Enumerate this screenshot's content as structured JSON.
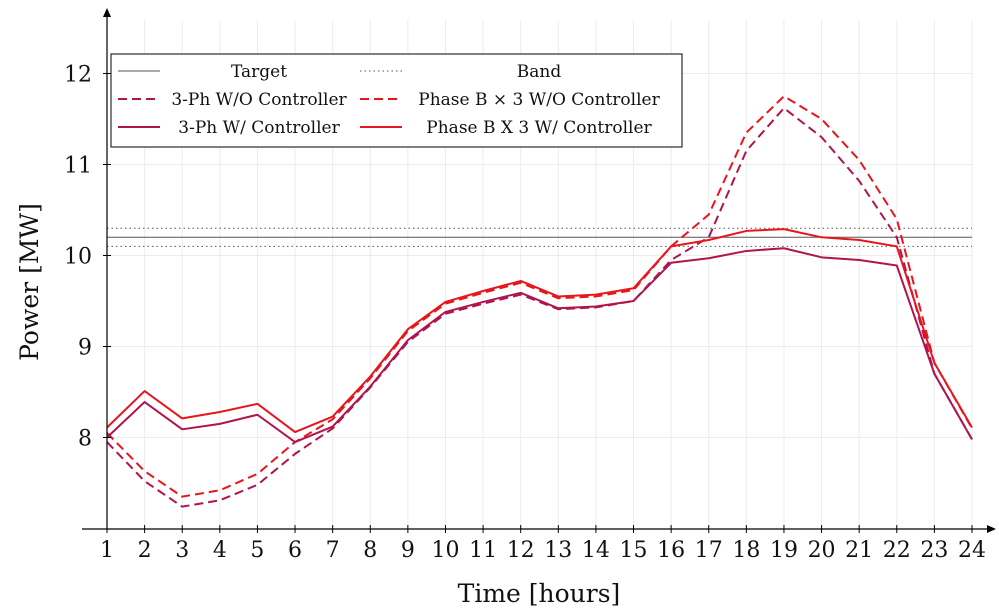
{
  "chart_data": {
    "type": "line",
    "title": "",
    "xlabel": "Time [hours]",
    "ylabel": "Power [MW]",
    "xlim": [
      1,
      24
    ],
    "ylim": [
      7.1,
      12.4
    ],
    "grid": true,
    "legend_position": "top-left",
    "x": [
      1,
      2,
      3,
      4,
      5,
      6,
      7,
      8,
      9,
      10,
      11,
      12,
      13,
      14,
      15,
      16,
      17,
      18,
      19,
      20,
      21,
      22,
      23,
      24
    ],
    "x_ticks": [
      "1",
      "2",
      "3",
      "4",
      "5",
      "6",
      "7",
      "8",
      "9",
      "10",
      "11",
      "12",
      "13",
      "14",
      "15",
      "16",
      "17",
      "18",
      "19",
      "20",
      "21",
      "22",
      "23",
      "24"
    ],
    "y_ticks": [
      8,
      9,
      10,
      11,
      12
    ],
    "series": [
      {
        "name": "Target",
        "style": "solid-thin",
        "color": "#555555",
        "values": [
          10.2,
          10.2,
          10.2,
          10.2,
          10.2,
          10.2,
          10.2,
          10.2,
          10.2,
          10.2,
          10.2,
          10.2,
          10.2,
          10.2,
          10.2,
          10.2,
          10.2,
          10.2,
          10.2,
          10.2,
          10.2,
          10.2,
          10.2,
          10.2
        ]
      },
      {
        "name": "Band",
        "style": "dotted",
        "color": "#555555",
        "values_upper": [
          10.3,
          10.3,
          10.3,
          10.3,
          10.3,
          10.3,
          10.3,
          10.3,
          10.3,
          10.3,
          10.3,
          10.3,
          10.3,
          10.3,
          10.3,
          10.3,
          10.3,
          10.3,
          10.3,
          10.3,
          10.3,
          10.3,
          10.3,
          10.3
        ],
        "values_lower": [
          10.1,
          10.1,
          10.1,
          10.1,
          10.1,
          10.1,
          10.1,
          10.1,
          10.1,
          10.1,
          10.1,
          10.1,
          10.1,
          10.1,
          10.1,
          10.1,
          10.1,
          10.1,
          10.1,
          10.1,
          10.1,
          10.1,
          10.1,
          10.1
        ]
      },
      {
        "name": "3-Ph W/O Controller",
        "style": "dashed",
        "color": "#b0144e",
        "values": [
          7.95,
          7.52,
          7.24,
          7.31,
          7.48,
          7.82,
          8.1,
          8.55,
          9.05,
          9.36,
          9.47,
          9.57,
          9.41,
          9.43,
          9.5,
          9.95,
          10.2,
          11.15,
          11.62,
          11.3,
          10.82,
          10.2,
          8.7,
          7.98
        ]
      },
      {
        "name": "Phase B × 3 W/O Controller",
        "style": "dashed",
        "color": "#e8161c",
        "values": [
          8.05,
          7.63,
          7.35,
          7.42,
          7.6,
          7.95,
          8.2,
          8.65,
          9.17,
          9.47,
          9.59,
          9.7,
          9.53,
          9.55,
          9.62,
          10.1,
          10.45,
          11.35,
          11.75,
          11.5,
          11.05,
          10.4,
          8.82,
          8.1
        ]
      },
      {
        "name": "3-Ph W/ Controller",
        "style": "solid",
        "color": "#b0144e",
        "values": [
          8.0,
          8.39,
          8.09,
          8.15,
          8.25,
          7.95,
          8.12,
          8.56,
          9.07,
          9.38,
          9.49,
          9.59,
          9.42,
          9.44,
          9.5,
          9.92,
          9.97,
          10.05,
          10.08,
          9.98,
          9.95,
          9.89,
          8.7,
          7.98
        ]
      },
      {
        "name": "Phase B X 3 W/ Controller",
        "style": "solid",
        "color": "#e8161c",
        "values": [
          8.11,
          8.51,
          8.21,
          8.28,
          8.37,
          8.06,
          8.23,
          8.67,
          9.19,
          9.49,
          9.61,
          9.72,
          9.55,
          9.57,
          9.64,
          10.1,
          10.17,
          10.27,
          10.29,
          10.2,
          10.17,
          10.1,
          8.82,
          8.11
        ]
      }
    ]
  }
}
